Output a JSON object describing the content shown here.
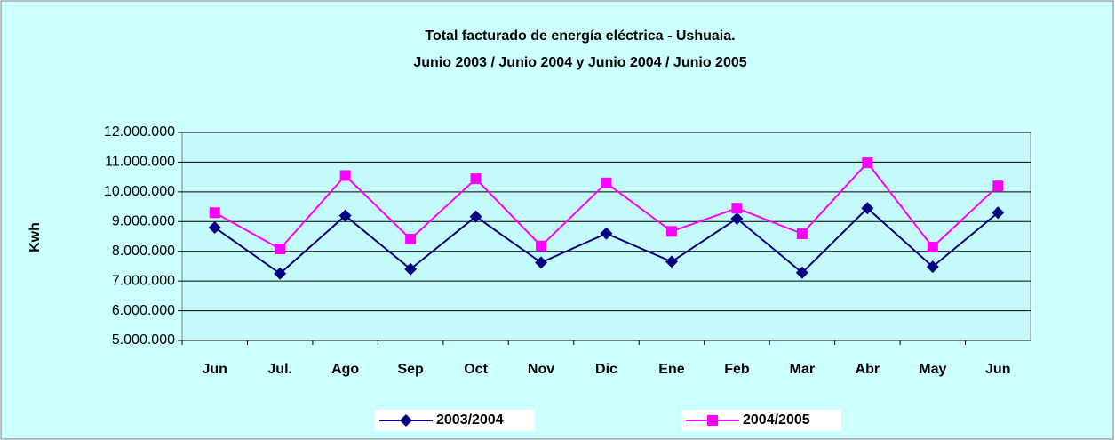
{
  "chart_data": {
    "type": "line",
    "title": "Total facturado de energía eléctrica - Ushuaia.",
    "subtitle": "Junio 2003 / Junio 2004 y Junio 2004 / Junio 2005",
    "y_label": "Kwh",
    "categories": [
      "Jun",
      "Jul.",
      "Ago",
      "Sep",
      "Oct",
      "Nov",
      "Dic",
      "Ene",
      "Feb",
      "Mar",
      "Abr",
      "May",
      "Jun"
    ],
    "series": [
      {
        "name": "2003/2004",
        "color": "#000080",
        "marker": "diamond",
        "values": [
          8800000,
          7250000,
          9200000,
          7400000,
          9170000,
          7620000,
          8600000,
          7650000,
          9100000,
          7280000,
          9450000,
          7480000,
          9300000
        ]
      },
      {
        "name": "2004/2005",
        "color": "#ff00ff",
        "marker": "square",
        "values": [
          9300000,
          8080000,
          10550000,
          8410000,
          10440000,
          8180000,
          10300000,
          8670000,
          9450000,
          8590000,
          10980000,
          8140000,
          10200000
        ]
      }
    ],
    "ylim": [
      5000000,
      12000000
    ],
    "yticks": [
      {
        "value": 5000000,
        "label": "5.000.000"
      },
      {
        "value": 6000000,
        "label": "6.000.000"
      },
      {
        "value": 7000000,
        "label": "7.000.000"
      },
      {
        "value": 8000000,
        "label": "8.000.000"
      },
      {
        "value": 9000000,
        "label": "9.000.000"
      },
      {
        "value": 10000000,
        "label": "10.000.000"
      },
      {
        "value": 11000000,
        "label": "11.000.000"
      },
      {
        "value": 12000000,
        "label": "12.000.000"
      }
    ],
    "grid": true,
    "legend": "bottom"
  }
}
